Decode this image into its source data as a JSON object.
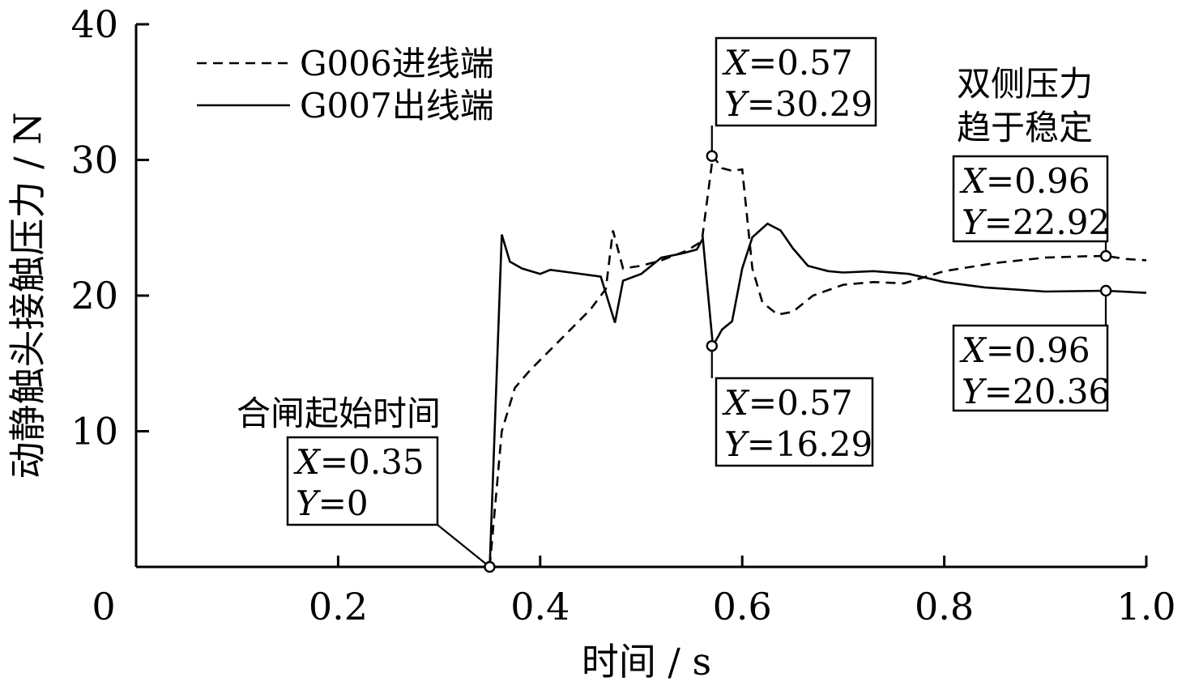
{
  "chart_data": {
    "type": "line",
    "xlabel": "时间 / s",
    "ylabel": "动静触头接触压力 / N",
    "xlim": [
      0,
      1.0
    ],
    "ylim": [
      0,
      40
    ],
    "xticks": [
      0.2,
      0.4,
      0.6,
      0.8,
      1.0
    ],
    "yticks": [
      10,
      20,
      30,
      40
    ],
    "origin_label": "0",
    "grid": false,
    "legend_position": "top-left",
    "series": [
      {
        "name": "G006进线端",
        "style": "dashed",
        "x": [
          0.35,
          0.362,
          0.375,
          0.39,
          0.41,
          0.43,
          0.45,
          0.465,
          0.472,
          0.482,
          0.5,
          0.52,
          0.545,
          0.56,
          0.571,
          0.58,
          0.59,
          0.6,
          0.61,
          0.62,
          0.635,
          0.65,
          0.67,
          0.7,
          0.73,
          0.76,
          0.8,
          0.85,
          0.9,
          0.94,
          0.96,
          0.98,
          1.0
        ],
        "y": [
          0,
          10,
          13.2,
          14.5,
          16,
          17.5,
          19,
          20.5,
          24.8,
          22,
          22.2,
          22.6,
          23.3,
          24,
          30.29,
          29.4,
          29.2,
          29.3,
          22,
          19.5,
          18.6,
          18.8,
          20,
          20.8,
          21,
          20.9,
          21.8,
          22.4,
          22.8,
          22.9,
          22.92,
          22.7,
          22.6
        ]
      },
      {
        "name": "G007出线端",
        "style": "solid",
        "x": [
          0.35,
          0.362,
          0.37,
          0.382,
          0.4,
          0.41,
          0.43,
          0.46,
          0.474,
          0.482,
          0.5,
          0.52,
          0.54,
          0.555,
          0.561,
          0.571,
          0.58,
          0.59,
          0.6,
          0.61,
          0.625,
          0.638,
          0.65,
          0.665,
          0.685,
          0.7,
          0.73,
          0.765,
          0.8,
          0.84,
          0.9,
          0.96,
          1.0
        ],
        "y": [
          0,
          24.5,
          22.5,
          22,
          21.6,
          21.9,
          21.7,
          21.4,
          18,
          21.1,
          21.6,
          22.8,
          23.1,
          23.4,
          24.2,
          16.29,
          17.5,
          18.1,
          22,
          24.3,
          25.3,
          24.8,
          23.5,
          22.2,
          21.8,
          21.7,
          21.8,
          21.6,
          21,
          20.6,
          20.3,
          20.36,
          20.2
        ]
      }
    ],
    "annotations": [
      {
        "id": "start",
        "point": [
          0.35,
          0
        ],
        "x_text": "=0.35",
        "y_text": "=0",
        "x_var": "X",
        "y_var": "Y"
      },
      {
        "id": "peak-in",
        "point": [
          0.57,
          30.29
        ],
        "x_text": "=0.57",
        "y_text": "=30.29",
        "x_var": "X",
        "y_var": "Y"
      },
      {
        "id": "dip-out",
        "point": [
          0.57,
          16.29
        ],
        "x_text": "=0.57",
        "y_text": "=16.29",
        "x_var": "X",
        "y_var": "Y"
      },
      {
        "id": "end-in",
        "point": [
          0.96,
          22.92
        ],
        "x_text": "=0.96",
        "y_text": "=22.92",
        "x_var": "X",
        "y_var": "Y"
      },
      {
        "id": "end-out",
        "point": [
          0.96,
          20.36
        ],
        "x_text": "=0.96",
        "y_text": "=20.36",
        "x_var": "X",
        "y_var": "Y"
      }
    ],
    "notes": {
      "start_note": "合闸起始时间",
      "stable_line1": "双侧压力",
      "stable_line2": "趋于稳定"
    }
  }
}
